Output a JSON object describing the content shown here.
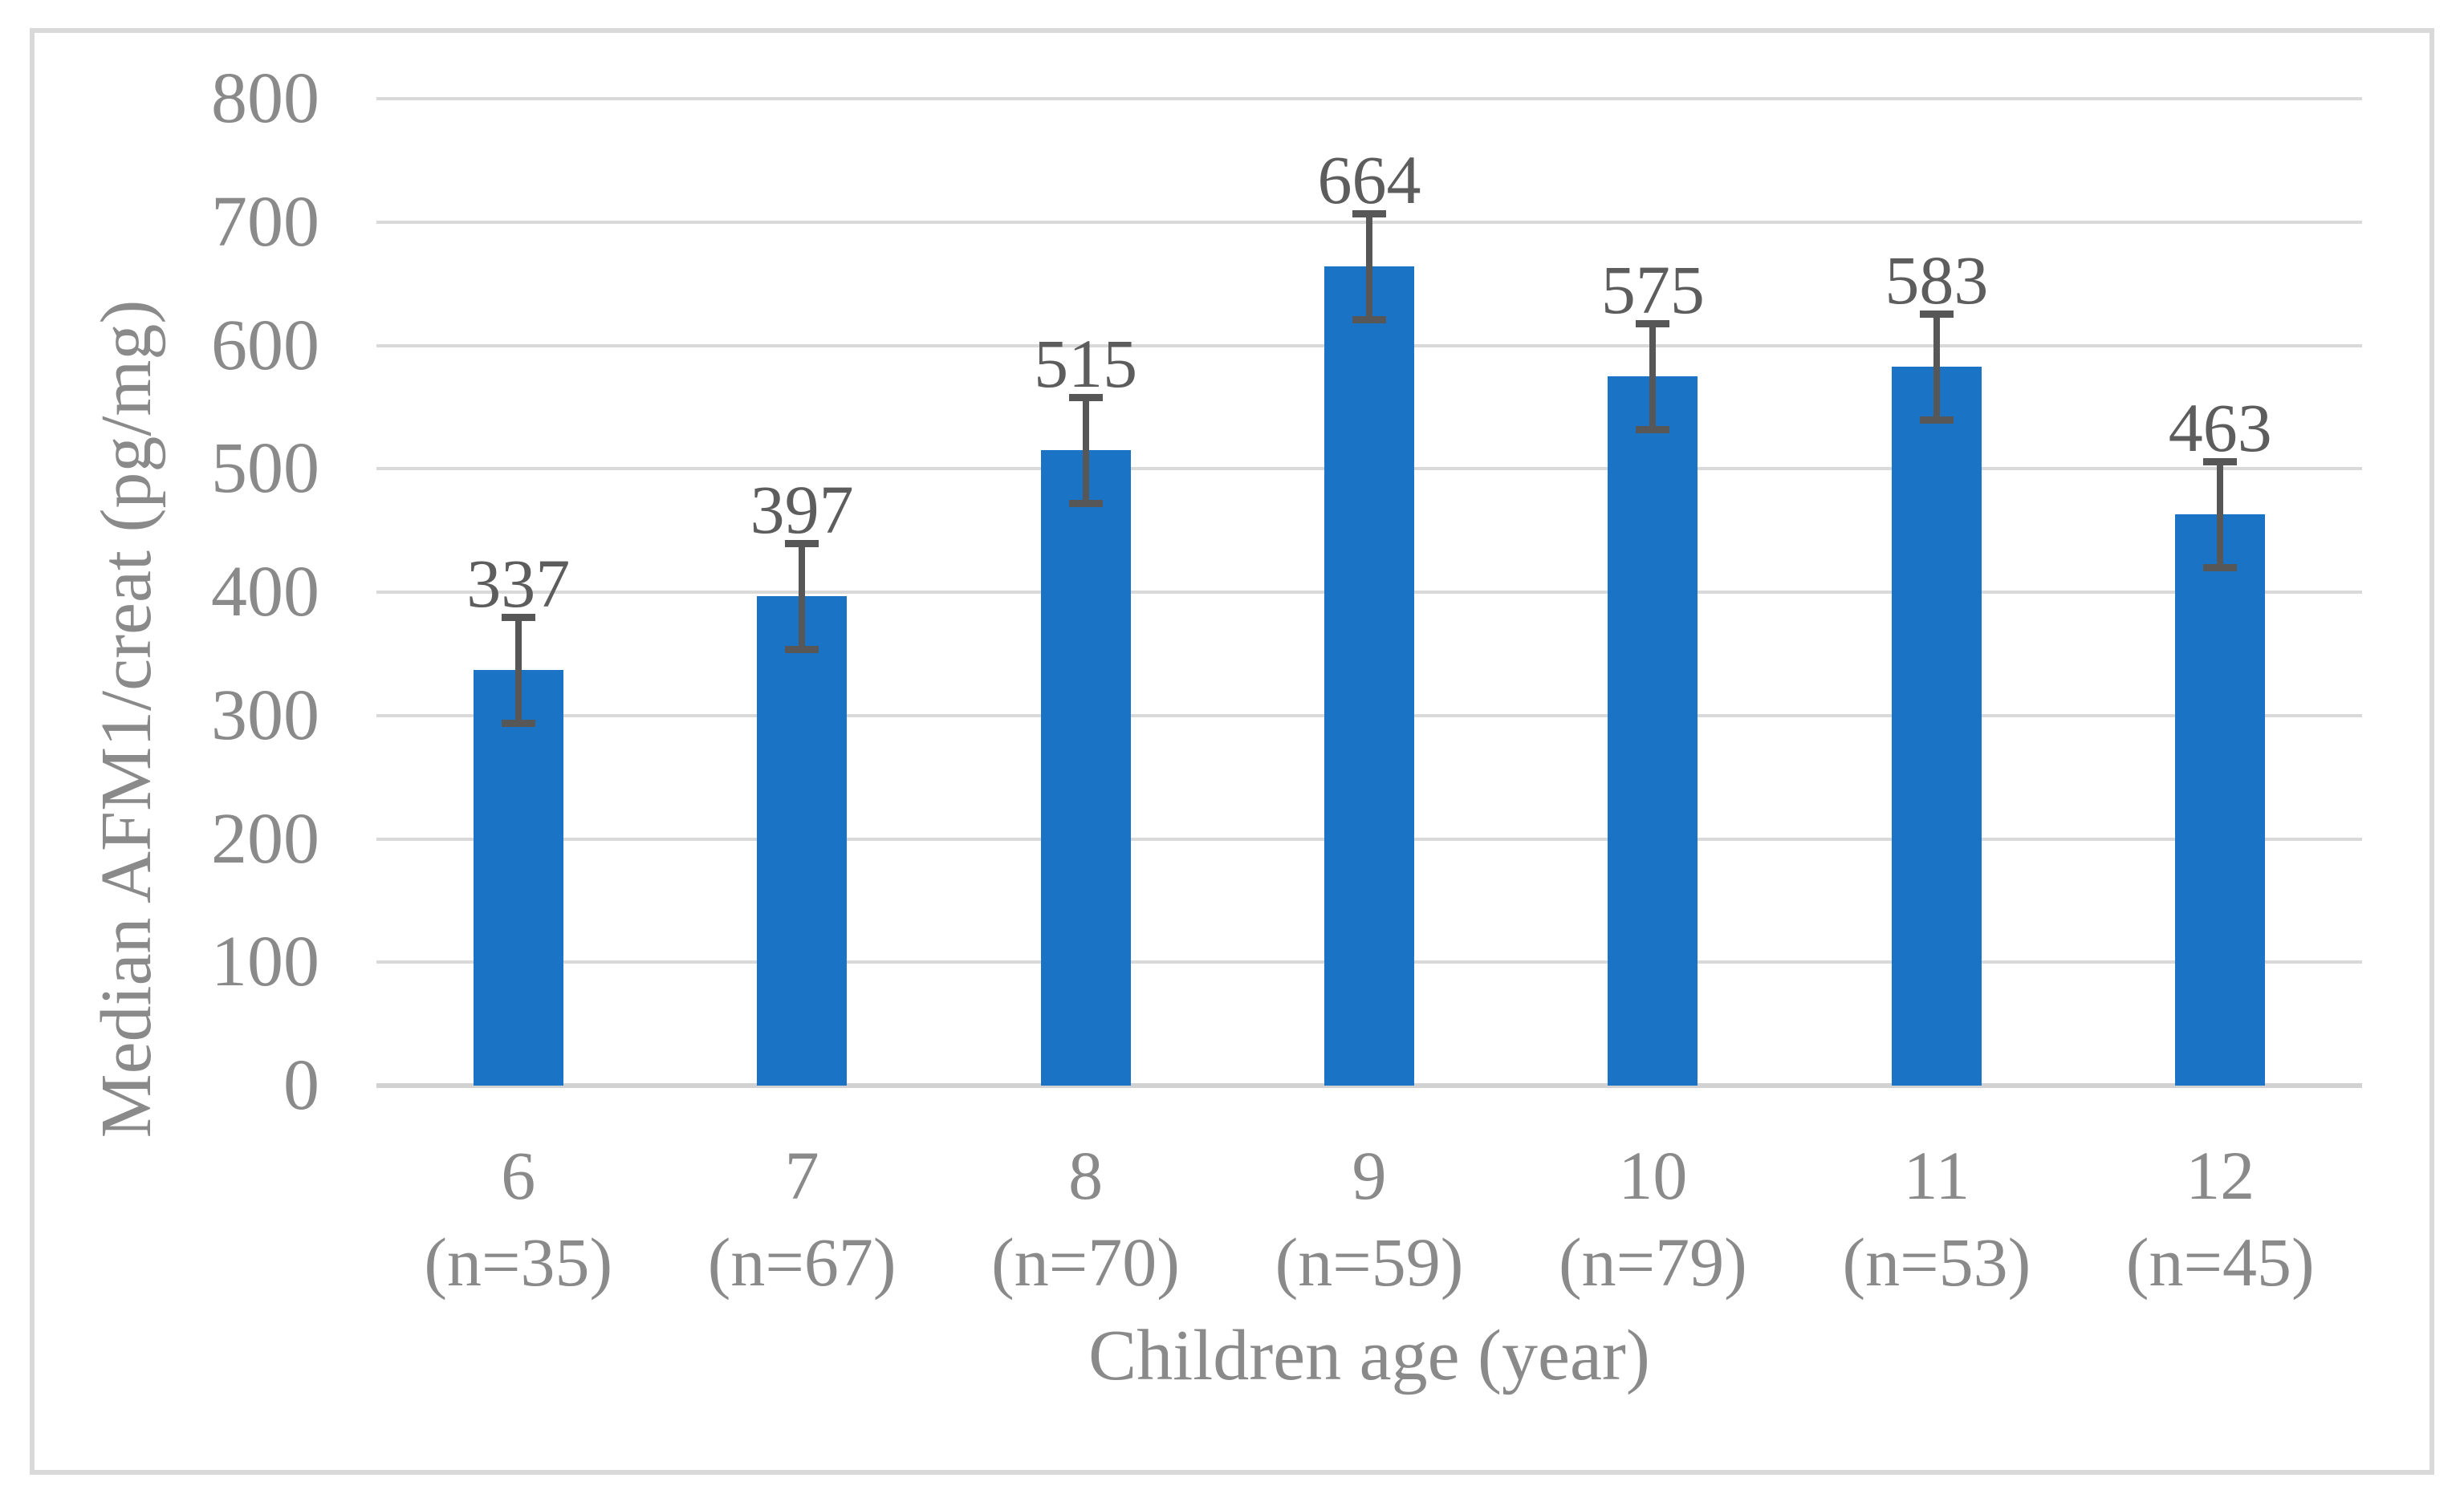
{
  "chart": {
    "background": "#FFFFFF",
    "border_color": "#D9D9D9"
  },
  "chart_data": {
    "type": "bar",
    "title": "",
    "xlabel": "Children age (year)",
    "ylabel": "Median AFM1/creat (pg/mg)",
    "categories": [
      "6",
      "7",
      "8",
      "9",
      "10",
      "11",
      "12"
    ],
    "category_sublabels": [
      "(n=35)",
      "(n=67)",
      "(n=70)",
      "(n=59)",
      "(n=79)",
      "(n=53)",
      "(n=45)"
    ],
    "values": [
      337,
      397,
      515,
      664,
      575,
      583,
      463
    ],
    "data_labels": [
      "337",
      "397",
      "515",
      "664",
      "575",
      "583",
      "463"
    ],
    "errors": [
      43,
      43,
      43,
      43,
      43,
      43,
      43
    ],
    "ylim": [
      0,
      800
    ],
    "yticks": [
      800,
      700,
      600,
      500,
      400,
      300,
      200,
      100,
      0
    ],
    "grid": true,
    "legend": "none",
    "bar_color": "#1A73C5",
    "error_bar_color": "#575757",
    "gridline_color": "#D9D9D9",
    "axis_text_color": "#8A8A8A",
    "data_label_color": "#5D5D5D"
  }
}
